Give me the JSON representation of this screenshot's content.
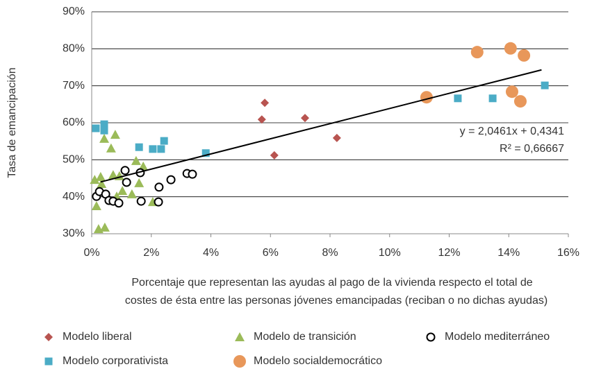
{
  "chart_data": {
    "type": "scatter",
    "y_label": "Tasa de emancipación",
    "x_label": [
      "Porcentaje que representan las ayudas al pago de la vivienda respecto el total de",
      "costes de ésta entre las personas jóvenes emancipadas (reciban o no dichas ayudas)"
    ],
    "xlim": [
      0,
      16
    ],
    "ylim": [
      30,
      90
    ],
    "xticks": [
      {
        "value": 0,
        "label": "0%"
      },
      {
        "value": 2,
        "label": "2%"
      },
      {
        "value": 4,
        "label": "4%"
      },
      {
        "value": 6,
        "label": "6%"
      },
      {
        "value": 8,
        "label": "8%"
      },
      {
        "value": 10,
        "label": "10%"
      },
      {
        "value": 12,
        "label": "12%"
      },
      {
        "value": 14,
        "label": "14%"
      },
      {
        "value": 16,
        "label": "16%"
      }
    ],
    "yticks": [
      {
        "value": 30,
        "label": "30%"
      },
      {
        "value": 40,
        "label": "40%"
      },
      {
        "value": 50,
        "label": "50%"
      },
      {
        "value": 60,
        "label": "60%"
      },
      {
        "value": 70,
        "label": "70%"
      },
      {
        "value": 80,
        "label": "80%"
      },
      {
        "value": 90,
        "label": "90%"
      }
    ],
    "grid": true,
    "legend": "bottom",
    "series": [
      {
        "name": "Modelo liberal",
        "color": "#b85450",
        "marker": "diamond",
        "x": [
          5.81,
          5.71,
          6.13,
          7.16,
          8.23
        ],
        "values": [
          65.4,
          60.9,
          51.2,
          61.3,
          55.9
        ]
      },
      {
        "name": "Modelo de transición",
        "color": "#9bbb59",
        "marker": "triangle",
        "x": [
          0.1,
          0.3,
          0.16,
          0.23,
          0.44,
          0.42,
          0.65,
          0.79,
          0.72,
          0.93,
          1.03,
          0.84,
          1.49,
          1.35,
          1.59,
          1.73,
          2.05,
          0.33
        ],
        "values": [
          44.6,
          45.4,
          37.5,
          31.3,
          31.7,
          55.7,
          53.1,
          56.8,
          45.9,
          45.6,
          41.6,
          40.1,
          49.7,
          40.7,
          43.7,
          48.2,
          38.6,
          43.5
        ]
      },
      {
        "name": "Modelo mediterráneo",
        "color": "#000000",
        "marker": "circle-open",
        "x": [
          0.16,
          0.26,
          0.47,
          0.58,
          0.72,
          0.91,
          1.12,
          1.17,
          1.63,
          1.66,
          2.24,
          2.26,
          2.66,
          3.2,
          3.38
        ],
        "values": [
          40.1,
          41.4,
          40.7,
          39.0,
          38.8,
          38.3,
          47.1,
          43.9,
          46.5,
          38.8,
          38.6,
          42.6,
          44.6,
          46.3,
          46.1
        ]
      },
      {
        "name": "Modelo corporativista",
        "color": "#4bacc6",
        "marker": "square",
        "x": [
          0.14,
          0.42,
          0.42,
          1.59,
          2.05,
          2.33,
          2.43,
          3.83,
          12.29,
          13.46,
          15.21
        ],
        "values": [
          58.5,
          59.6,
          57.9,
          53.4,
          52.9,
          52.9,
          55.1,
          51.8,
          66.6,
          66.6,
          70.1
        ]
      },
      {
        "name": "Modelo socialdemocrático",
        "color": "#e8975a",
        "marker": "circle",
        "x": [
          11.24,
          12.94,
          14.06,
          14.11,
          14.51,
          14.39
        ],
        "values": [
          66.9,
          79.1,
          80.1,
          68.4,
          78.2,
          65.8
        ]
      }
    ],
    "trendline": {
      "color": "#000000",
      "x": [
        0.3,
        15.1
      ],
      "values": [
        44.0,
        74.3
      ]
    },
    "annotations": [
      "y = 2,0461x + 0,4341",
      "R² = 0,66667"
    ]
  }
}
